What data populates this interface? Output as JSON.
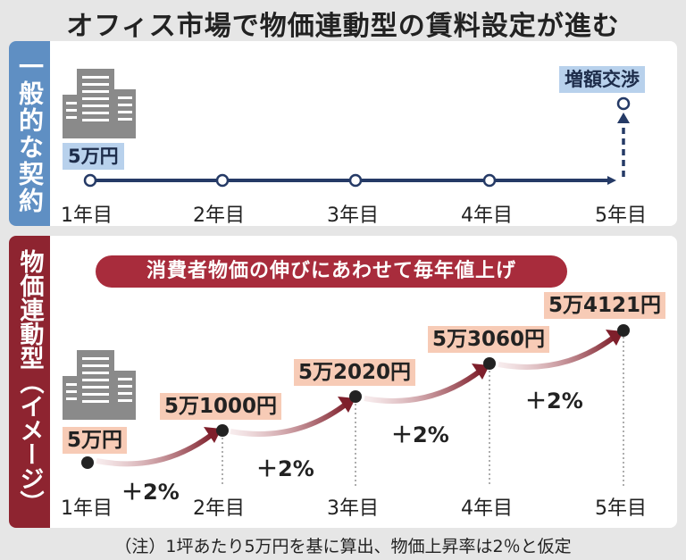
{
  "title": "オフィス市場で物価連動型の賃料設定が進む",
  "general": {
    "label": "一般的な契約",
    "start_price": "5万円",
    "increase_label": "増額交渉",
    "years": [
      "1年目",
      "2年目",
      "3年目",
      "4年目",
      "5年目"
    ]
  },
  "indexed": {
    "label": "物価連動型（イメージ）",
    "banner": "消費者物価の伸びにあわせて毎年値上げ",
    "prices": [
      "5万円",
      "5万1000円",
      "5万2020円",
      "5万3060円",
      "5万4121円"
    ],
    "increase": [
      "＋2%",
      "＋2%",
      "＋2%",
      "＋2%"
    ],
    "years": [
      "1年目",
      "2年目",
      "3年目",
      "4年目",
      "5年目"
    ]
  },
  "note": "（注）1坪あたり5万円を基に算出、物価上昇率は2％と仮定",
  "colors": {
    "blue_accent": "#5f8fc3",
    "navy_line": "#253a66",
    "red_accent": "#8e2430",
    "banner_red": "#a82c3c",
    "peach_tag": "#f7cbb6",
    "light_blue_tag": "#b8d1ec"
  }
}
